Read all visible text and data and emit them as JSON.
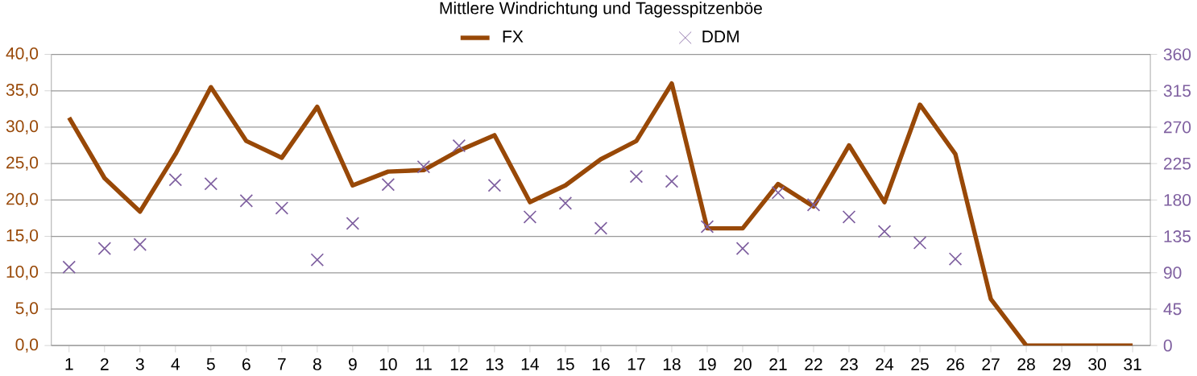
{
  "chart_data": {
    "type": "line",
    "title": "Mittlere Windrichtung und Tagesspitzenböe",
    "categories": [
      "1",
      "2",
      "3",
      "4",
      "5",
      "6",
      "7",
      "8",
      "9",
      "10",
      "11",
      "12",
      "13",
      "14",
      "15",
      "16",
      "17",
      "18",
      "19",
      "20",
      "21",
      "22",
      "23",
      "24",
      "25",
      "26",
      "27",
      "28",
      "29",
      "30",
      "31"
    ],
    "series": [
      {
        "name": "FX",
        "color": "#984807",
        "marker": "none",
        "line_style": "solid",
        "values": [
          31.3,
          23.0,
          18.4,
          26.3,
          35.5,
          28.1,
          25.8,
          32.8,
          22.0,
          23.9,
          24.1,
          26.8,
          28.9,
          19.7,
          22.0,
          25.6,
          28.1,
          36.0,
          16.1,
          16.1,
          22.2,
          19.1,
          27.5,
          19.7,
          33.1,
          26.3,
          6.4,
          0,
          0,
          0,
          0
        ]
      },
      {
        "name": "DDM",
        "type": "scatter",
        "axis": "y2",
        "color": "#7f60a0",
        "marker": "cross",
        "values": [
          97,
          120,
          125,
          205,
          200,
          179,
          170,
          106,
          151,
          199,
          221,
          247,
          198,
          159,
          176,
          145,
          209,
          203,
          147,
          120,
          189,
          174,
          159,
          141,
          127,
          107,
          null,
          null,
          null,
          null,
          null
        ]
      }
    ],
    "ylim": [
      0,
      40
    ],
    "yticks": [
      {
        "value": 0,
        "label": "0,0"
      },
      {
        "value": 5,
        "label": "5,0"
      },
      {
        "value": 10,
        "label": "10,0"
      },
      {
        "value": 15,
        "label": "15,0"
      },
      {
        "value": 20,
        "label": "20,0"
      },
      {
        "value": 25,
        "label": "25,0"
      },
      {
        "value": 30,
        "label": "30,0"
      },
      {
        "value": 35,
        "label": "35,0"
      },
      {
        "value": 40,
        "label": "40,0"
      }
    ],
    "y2lim": [
      0,
      360
    ],
    "y2ticks": [
      0,
      45,
      90,
      135,
      180,
      225,
      270,
      315,
      360
    ],
    "grid": "y",
    "legend": "top"
  }
}
